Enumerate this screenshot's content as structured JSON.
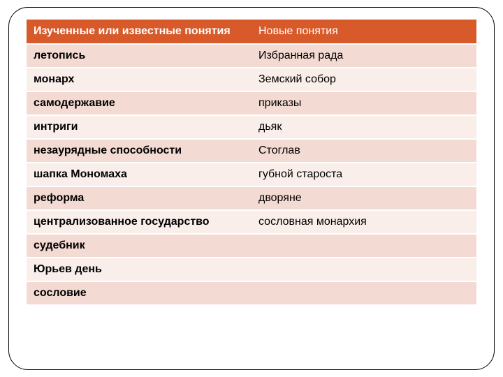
{
  "table": {
    "header_bg": "#d85a2a",
    "header_fg": "#ffffff",
    "row_odd_bg": "#f3dad2",
    "row_even_bg": "#f9eeea",
    "columns": [
      "Изученные  или известные понятия",
      "Новые понятия"
    ],
    "rows": [
      {
        "left": "летопись",
        "right": "Избранная рада"
      },
      {
        "left": "монарх",
        "right": "Земский собор"
      },
      {
        "left": "самодержавие",
        "right": "приказы"
      },
      {
        "left": "интриги",
        "right": "дьяк"
      },
      {
        "left": "незаурядные способности",
        "right": "Стоглав"
      },
      {
        "left": "шапка Мономаха",
        "right": "губной староста"
      },
      {
        "left": "реформа",
        "right": "дворяне"
      },
      {
        "left": "централизованное государство",
        "right": "сословная монархия"
      },
      {
        "left": "судебник",
        "right": ""
      },
      {
        "left": "Юрьев день",
        "right": ""
      },
      {
        "left": "сословие",
        "right": ""
      }
    ]
  }
}
